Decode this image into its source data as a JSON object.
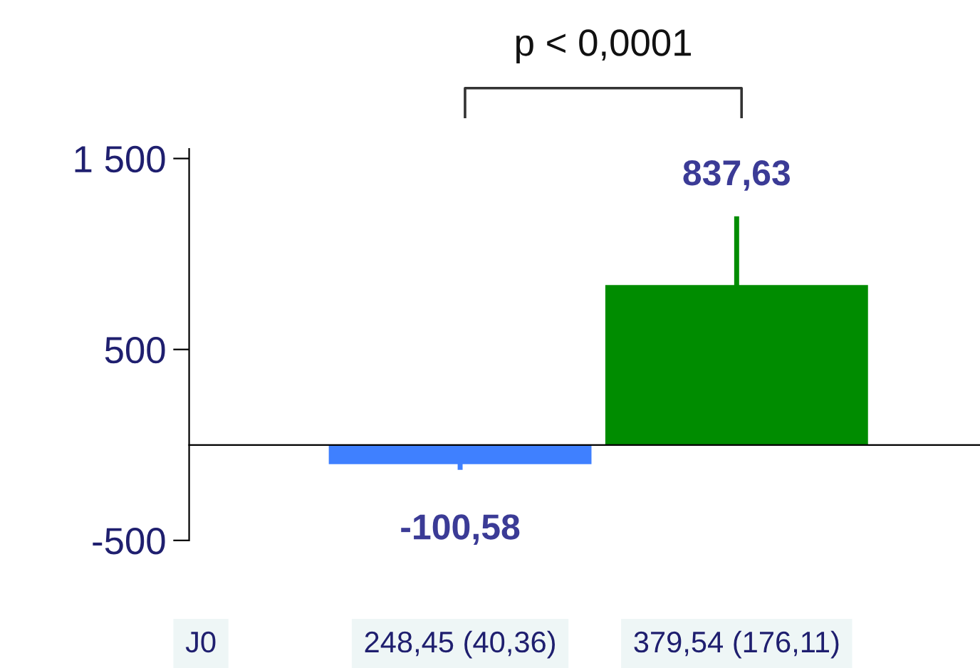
{
  "chart_data": {
    "type": "bar",
    "categories": [
      null,
      null
    ],
    "values": [
      -100.58,
      837.63
    ],
    "colors": [
      "#3f80ff",
      "#008c00"
    ],
    "errors": [
      30,
      360
    ],
    "value_labels": [
      "-100,58",
      "837,63"
    ],
    "ylim": [
      -500,
      1550
    ],
    "yticks": [
      {
        "value": -500,
        "label": "-500"
      },
      500,
      {
        "value": 1500,
        "label": "1 500"
      }
    ],
    "grid": false,
    "legend": false,
    "annotations": [
      "p < 0,0001",
      "J0",
      "248,45 (40,36)",
      "379,54 (176,11)"
    ]
  }
}
